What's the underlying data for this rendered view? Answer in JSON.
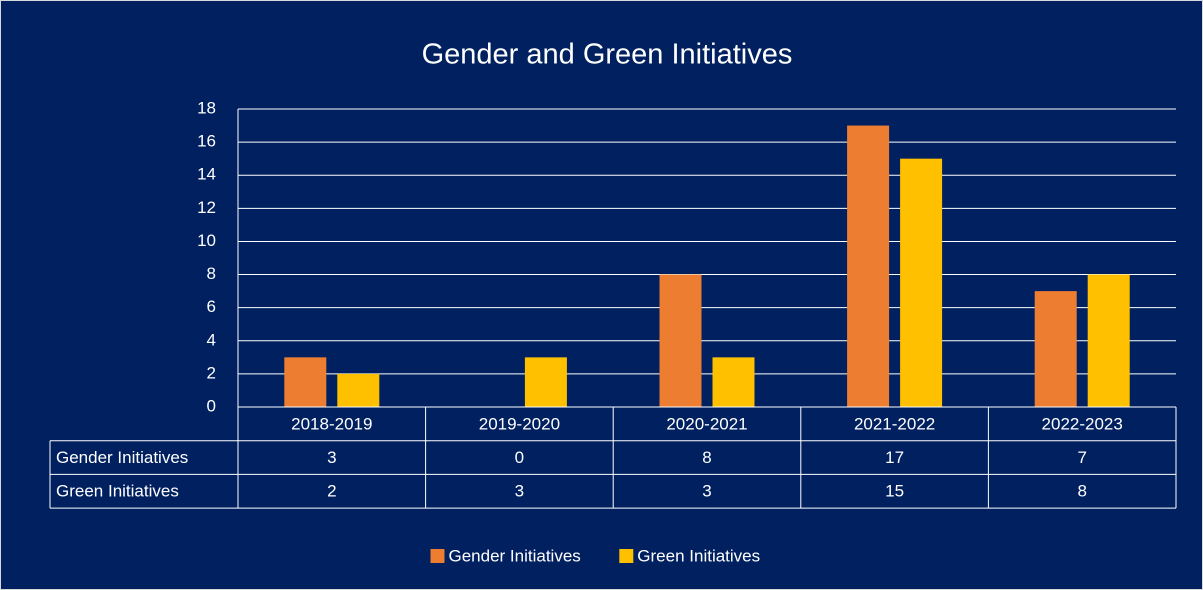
{
  "chart_data": {
    "type": "bar",
    "title": "Gender and Green Initiatives",
    "categories": [
      "2018-2019",
      "2019-2020",
      "2020-2021",
      "2021-2022",
      "2022-2023"
    ],
    "series": [
      {
        "name": "Gender Initiatives",
        "color": "#ed7d31",
        "values": [
          3,
          0,
          8,
          17,
          7
        ]
      },
      {
        "name": "Green Initiatives",
        "color": "#ffc000",
        "values": [
          2,
          3,
          3,
          15,
          8
        ]
      }
    ],
    "ylim": [
      0,
      18
    ],
    "yticks": [
      0,
      2,
      4,
      6,
      8,
      10,
      12,
      14,
      16,
      18
    ],
    "grid": true,
    "background": "#002060",
    "legend": "bottom"
  }
}
